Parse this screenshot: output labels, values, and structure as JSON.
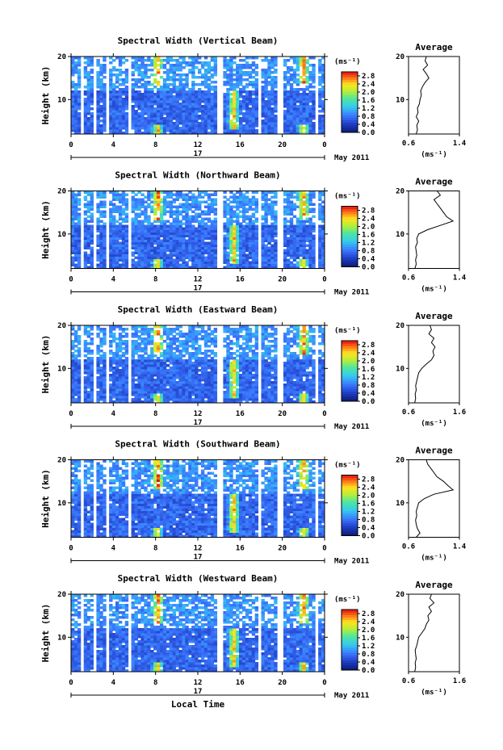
{
  "chart_data": [
    {
      "type": "heatmap",
      "title": "Spectral Width (Vertical Beam)",
      "ylabel": "Height (km)",
      "yticks": [
        "20",
        "10"
      ],
      "ylim": [
        2,
        20
      ],
      "xticks": [
        "0",
        "4",
        "8",
        "12",
        "16",
        "20",
        "0"
      ],
      "xlim": [
        0,
        24
      ],
      "date_label": "17",
      "date_suffix": "May 2011",
      "colorbar": {
        "unit": "(ms⁻¹)",
        "ticks": [
          "2.8",
          "2.4",
          "2.0",
          "1.6",
          "1.2",
          "0.8",
          "0.4",
          "0.0"
        ],
        "range": [
          0,
          3.0
        ]
      },
      "hot_times": [
        8.2,
        15.4,
        22.0
      ],
      "gaps": [
        [
          1.0,
          1.3
        ],
        [
          2.2,
          2.5
        ],
        [
          3.2,
          3.6
        ],
        [
          5.4,
          5.7
        ],
        [
          13.9,
          14.3
        ],
        [
          17.7,
          18.0
        ],
        [
          19.6,
          20.0
        ],
        [
          23.2,
          23.5
        ]
      ],
      "average": {
        "title": "Average",
        "xlabel": "(ms⁻¹)",
        "xticks": [
          "0.6",
          "1.4"
        ],
        "xlim": [
          0.6,
          1.4
        ],
        "yticks": [
          "20",
          "10"
        ],
        "height_km": [
          2,
          3,
          4,
          5,
          6,
          7,
          8,
          9,
          10,
          11,
          12,
          13,
          14,
          15,
          16,
          17,
          18,
          19,
          20
        ],
        "width": [
          0.72,
          0.74,
          0.73,
          0.76,
          0.72,
          0.75,
          0.74,
          0.77,
          0.78,
          0.8,
          0.79,
          0.82,
          0.86,
          0.92,
          0.88,
          0.83,
          0.9,
          0.86,
          0.88
        ]
      }
    },
    {
      "type": "heatmap",
      "title": "Spectral Width (Northward Beam)",
      "ylabel": "Height (km)",
      "yticks": [
        "20",
        "10"
      ],
      "ylim": [
        2,
        20
      ],
      "xticks": [
        "0",
        "4",
        "8",
        "12",
        "16",
        "20",
        "0"
      ],
      "xlim": [
        0,
        24
      ],
      "date_label": "17",
      "date_suffix": "May 2011",
      "colorbar": {
        "unit": "(ms⁻¹)",
        "ticks": [
          "2.8",
          "2.4",
          "2.0",
          "1.6",
          "1.2",
          "0.8",
          "0.4",
          "0.0"
        ],
        "range": [
          0,
          3.0
        ]
      },
      "hot_times": [
        8.2,
        15.4,
        22.0
      ],
      "gaps": [
        [
          1.0,
          1.3
        ],
        [
          2.2,
          2.5
        ],
        [
          3.2,
          3.6
        ],
        [
          5.4,
          5.7
        ],
        [
          13.9,
          14.3
        ],
        [
          17.7,
          18.0
        ],
        [
          19.6,
          20.0
        ],
        [
          23.2,
          23.5
        ]
      ],
      "average": {
        "title": "Average",
        "xlabel": "(ms⁻¹)",
        "xticks": [
          "0.6",
          "1.4"
        ],
        "xlim": [
          0.6,
          1.4
        ],
        "yticks": [
          "20",
          "10"
        ],
        "height_km": [
          2,
          3,
          4,
          5,
          6,
          7,
          8,
          9,
          10,
          11,
          12,
          13,
          14,
          15,
          16,
          17,
          18,
          19,
          20
        ],
        "width": [
          0.7,
          0.72,
          0.71,
          0.73,
          0.72,
          0.71,
          0.74,
          0.73,
          0.76,
          0.9,
          1.1,
          1.3,
          1.2,
          1.15,
          1.1,
          1.05,
          1.0,
          1.1,
          1.05
        ]
      }
    },
    {
      "type": "heatmap",
      "title": "Spectral Width (Eastward Beam)",
      "ylabel": "Height (km)",
      "yticks": [
        "20",
        "10"
      ],
      "ylim": [
        2,
        20
      ],
      "xticks": [
        "0",
        "4",
        "8",
        "12",
        "16",
        "20",
        "0"
      ],
      "xlim": [
        0,
        24
      ],
      "date_label": "17",
      "date_suffix": "May 2011",
      "colorbar": {
        "unit": "(ms⁻¹)",
        "ticks": [
          "2.8",
          "2.4",
          "2.0",
          "1.6",
          "1.2",
          "0.8",
          "0.4",
          "0.0"
        ],
        "range": [
          0,
          3.0
        ]
      },
      "hot_times": [
        8.2,
        15.4,
        22.0
      ],
      "gaps": [
        [
          1.0,
          1.3
        ],
        [
          2.2,
          2.5
        ],
        [
          3.2,
          3.6
        ],
        [
          5.4,
          5.7
        ],
        [
          13.9,
          14.3
        ],
        [
          17.7,
          18.0
        ],
        [
          19.6,
          20.0
        ],
        [
          23.2,
          23.5
        ]
      ],
      "average": {
        "title": "Average",
        "xlabel": "(ms⁻¹)",
        "xticks": [
          "0.6",
          "1.6"
        ],
        "xlim": [
          0.6,
          1.6
        ],
        "yticks": [
          "20",
          "10"
        ],
        "height_km": [
          2,
          3,
          4,
          5,
          6,
          7,
          8,
          9,
          10,
          11,
          12,
          13,
          14,
          15,
          16,
          17,
          18,
          19,
          20
        ],
        "width": [
          0.72,
          0.74,
          0.73,
          0.75,
          0.74,
          0.76,
          0.78,
          0.8,
          0.86,
          0.95,
          1.05,
          1.1,
          1.08,
          1.12,
          1.05,
          1.1,
          1.0,
          1.05,
          1.02
        ]
      }
    },
    {
      "type": "heatmap",
      "title": "Spectral Width (Southward Beam)",
      "ylabel": "Height (km)",
      "yticks": [
        "20",
        "10"
      ],
      "ylim": [
        2,
        20
      ],
      "xticks": [
        "0",
        "4",
        "8",
        "12",
        "16",
        "20",
        "0"
      ],
      "xlim": [
        0,
        24
      ],
      "date_label": "17",
      "date_suffix": "May 2011",
      "colorbar": {
        "unit": "(ms⁻¹)",
        "ticks": [
          "2.8",
          "2.4",
          "2.0",
          "1.6",
          "1.2",
          "0.8",
          "0.4",
          "0.0"
        ],
        "range": [
          0,
          3.0
        ]
      },
      "hot_times": [
        8.2,
        15.4,
        22.0
      ],
      "gaps": [
        [
          1.0,
          1.3
        ],
        [
          2.2,
          2.5
        ],
        [
          3.2,
          3.6
        ],
        [
          5.4,
          5.7
        ],
        [
          13.9,
          14.3
        ],
        [
          17.7,
          18.0
        ],
        [
          19.6,
          20.0
        ],
        [
          23.2,
          23.5
        ]
      ],
      "average": {
        "title": "Average",
        "xlabel": "(ms⁻¹)",
        "xticks": [
          "0.6",
          "1.4"
        ],
        "xlim": [
          0.6,
          1.4
        ],
        "yticks": [
          "20",
          "10"
        ],
        "height_km": [
          2,
          3,
          4,
          5,
          6,
          7,
          8,
          9,
          10,
          11,
          12,
          13,
          14,
          15,
          16,
          17,
          18,
          19,
          20
        ],
        "width": [
          0.72,
          0.78,
          0.74,
          0.72,
          0.71,
          0.73,
          0.72,
          0.74,
          0.76,
          0.85,
          1.0,
          1.3,
          1.22,
          1.15,
          1.05,
          1.0,
          0.95,
          0.9,
          0.88
        ]
      }
    },
    {
      "type": "heatmap",
      "title": "Spectral Width (Westward Beam)",
      "ylabel": "Height (km)",
      "yticks": [
        "20",
        "10"
      ],
      "ylim": [
        2,
        20
      ],
      "xticks": [
        "0",
        "4",
        "8",
        "12",
        "16",
        "20",
        "0"
      ],
      "xlim": [
        0,
        24
      ],
      "date_label": "17",
      "date_suffix": "May 2011",
      "xlabel": "Local Time",
      "colorbar": {
        "unit": "(ms⁻¹)",
        "ticks": [
          "2.8",
          "2.4",
          "2.0",
          "1.6",
          "1.2",
          "0.8",
          "0.4",
          "0.0"
        ],
        "range": [
          0,
          3.0
        ]
      },
      "hot_times": [
        8.2,
        15.4,
        22.0
      ],
      "gaps": [
        [
          1.0,
          1.3
        ],
        [
          2.2,
          2.5
        ],
        [
          3.2,
          3.6
        ],
        [
          5.4,
          5.7
        ],
        [
          13.9,
          14.3
        ],
        [
          17.7,
          18.0
        ],
        [
          19.6,
          20.0
        ],
        [
          23.2,
          23.5
        ]
      ],
      "average": {
        "title": "Average",
        "xlabel": "(ms⁻¹)",
        "xticks": [
          "0.6",
          "1.6"
        ],
        "xlim": [
          0.6,
          1.6
        ],
        "yticks": [
          "20",
          "10"
        ],
        "height_km": [
          2,
          3,
          4,
          5,
          6,
          7,
          8,
          9,
          10,
          11,
          12,
          13,
          14,
          15,
          16,
          17,
          18,
          19,
          20
        ],
        "width": [
          0.72,
          0.74,
          0.73,
          0.75,
          0.74,
          0.73,
          0.76,
          0.78,
          0.8,
          0.86,
          0.92,
          0.95,
          1.0,
          0.98,
          1.05,
          1.0,
          1.1,
          1.02,
          1.05
        ]
      }
    }
  ]
}
